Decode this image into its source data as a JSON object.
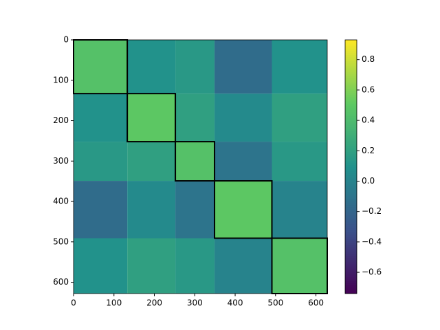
{
  "chart_data": {
    "type": "heatmap",
    "block_edges": [
      0,
      133,
      252,
      349,
      491,
      628
    ],
    "z": [
      [
        0.45,
        0.1,
        0.15,
        -0.15,
        0.1
      ],
      [
        0.1,
        0.5,
        0.2,
        0.05,
        0.2
      ],
      [
        0.15,
        0.2,
        0.45,
        -0.1,
        0.15
      ],
      [
        -0.15,
        0.05,
        -0.1,
        0.5,
        0.0
      ],
      [
        0.1,
        0.2,
        0.15,
        0.0,
        0.45
      ]
    ],
    "xlim": [
      0,
      628
    ],
    "ylim": [
      628,
      0
    ],
    "xticks": [
      0,
      100,
      200,
      300,
      400,
      500,
      600
    ],
    "yticks": [
      0,
      100,
      200,
      300,
      400,
      500,
      600
    ],
    "colormap": "viridis",
    "clim": [
      -0.74,
      0.93
    ],
    "cticks": [
      {
        "value": -0.6,
        "label": "−0.6"
      },
      {
        "value": -0.4,
        "label": "−0.4"
      },
      {
        "value": -0.2,
        "label": "−0.2"
      },
      {
        "value": 0,
        "label": "0.0"
      },
      0.2,
      0.4,
      0.6,
      0.8
    ],
    "box_color": "#000000"
  }
}
